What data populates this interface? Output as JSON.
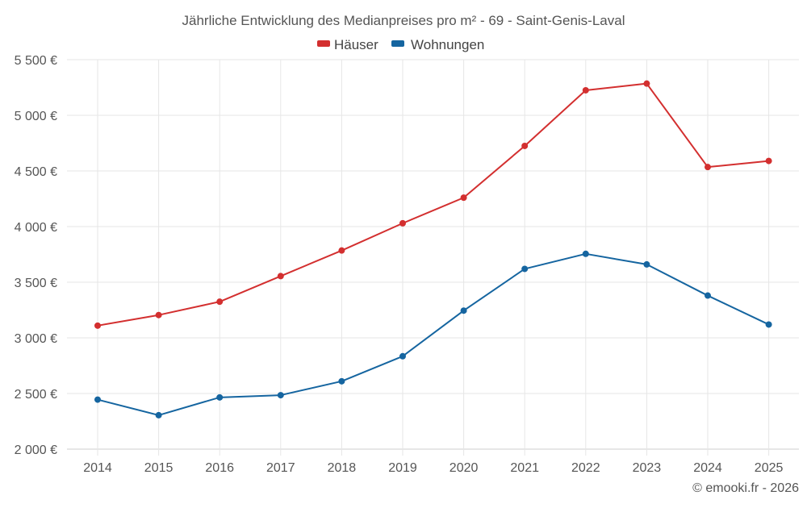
{
  "chart_data": {
    "type": "line",
    "title": "Jährliche Entwicklung des Medianpreises pro m² - 69 - Saint-Genis-Laval",
    "categories": [
      "2014",
      "2015",
      "2016",
      "2017",
      "2018",
      "2019",
      "2020",
      "2021",
      "2022",
      "2023",
      "2024",
      "2025"
    ],
    "series": [
      {
        "name": "Häuser",
        "color": "#d32f2f",
        "values": [
          3110,
          3205,
          3325,
          3555,
          3785,
          4030,
          4260,
          4725,
          5225,
          5285,
          4535,
          4590
        ]
      },
      {
        "name": "Wohnungen",
        "color": "#1565a0",
        "values": [
          2445,
          2305,
          2465,
          2485,
          2610,
          2835,
          3245,
          3620,
          3755,
          3660,
          3380,
          3120
        ]
      }
    ],
    "ylim": [
      2000,
      5500
    ],
    "yticks": [
      2000,
      2500,
      3000,
      3500,
      4000,
      4500,
      5000,
      5500
    ],
    "ytick_labels": [
      "2 000 €",
      "2 500 €",
      "3 000 €",
      "3 500 €",
      "4 000 €",
      "4 500 €",
      "5 000 €",
      "5 500 €"
    ],
    "xlabel": "",
    "ylabel": "",
    "grid": true,
    "legend_position": "top-center"
  },
  "copyright": "© emooki.fr - 2026"
}
